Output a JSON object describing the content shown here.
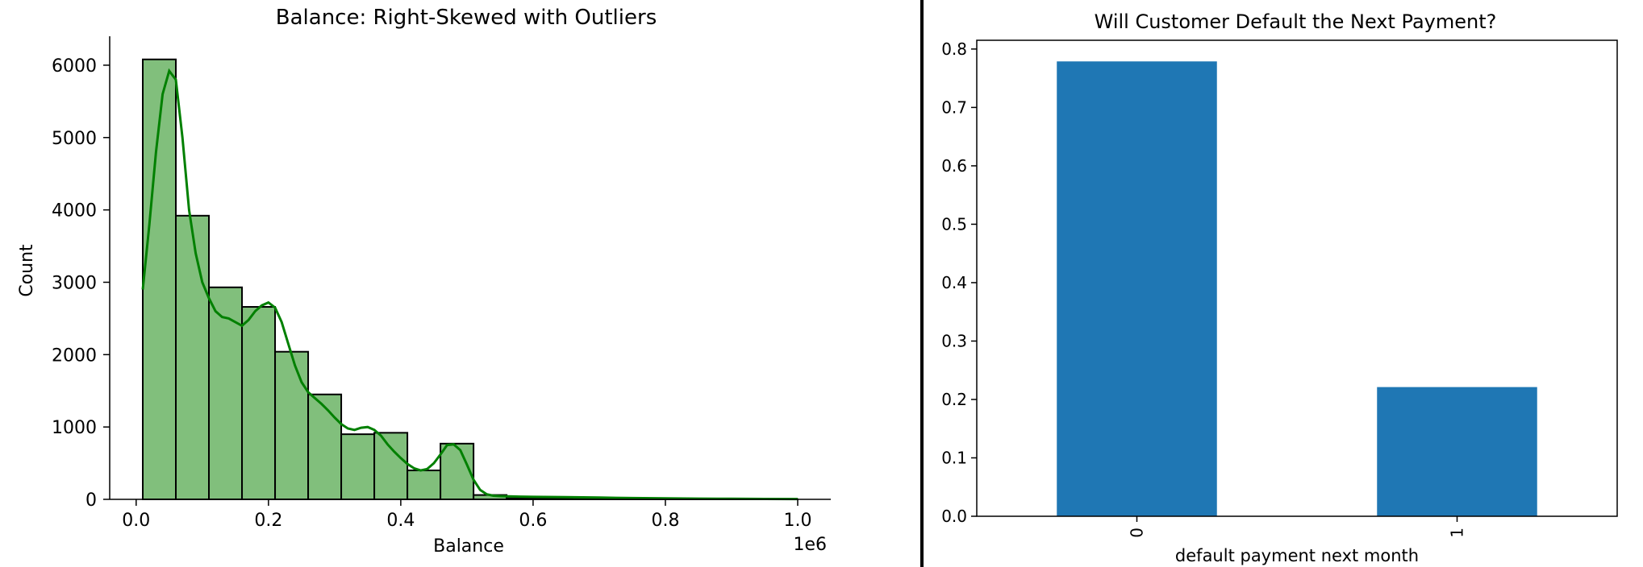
{
  "chart_data": [
    {
      "type": "bar",
      "subtype": "histogram-with-kde",
      "title": "Balance: Right-Skewed with Outliers",
      "xlabel": "Balance",
      "ylabel": "Count",
      "x_offset_text": "1e6",
      "x_unit_scale": 1000000,
      "xlim": [
        -0.04,
        1.05
      ],
      "ylim": [
        0,
        6400
      ],
      "x_ticks": [
        0.0,
        0.2,
        0.4,
        0.6,
        0.8,
        1.0
      ],
      "x_tick_labels": [
        "0.0",
        "0.2",
        "0.4",
        "0.6",
        "0.8",
        "1.0"
      ],
      "y_ticks": [
        0,
        1000,
        2000,
        3000,
        4000,
        5000,
        6000
      ],
      "y_tick_labels": [
        "0",
        "1000",
        "2000",
        "3000",
        "4000",
        "5000",
        "6000"
      ],
      "bins": [
        {
          "x0": 0.01,
          "x1": 0.06,
          "count": 6080
        },
        {
          "x0": 0.06,
          "x1": 0.11,
          "count": 3920
        },
        {
          "x0": 0.11,
          "x1": 0.16,
          "count": 2930
        },
        {
          "x0": 0.16,
          "x1": 0.21,
          "count": 2660
        },
        {
          "x0": 0.21,
          "x1": 0.26,
          "count": 2040
        },
        {
          "x0": 0.26,
          "x1": 0.31,
          "count": 1450
        },
        {
          "x0": 0.31,
          "x1": 0.36,
          "count": 900
        },
        {
          "x0": 0.36,
          "x1": 0.41,
          "count": 920
        },
        {
          "x0": 0.41,
          "x1": 0.46,
          "count": 400
        },
        {
          "x0": 0.46,
          "x1": 0.51,
          "count": 770
        },
        {
          "x0": 0.51,
          "x1": 0.56,
          "count": 60
        },
        {
          "x0": 0.56,
          "x1": 0.61,
          "count": 15
        },
        {
          "x0": 0.61,
          "x1": 0.66,
          "count": 10
        },
        {
          "x0": 0.66,
          "x1": 0.71,
          "count": 5
        },
        {
          "x0": 0.71,
          "x1": 0.76,
          "count": 4
        },
        {
          "x0": 0.76,
          "x1": 0.81,
          "count": 3
        },
        {
          "x0": 0.81,
          "x1": 0.86,
          "count": 2
        },
        {
          "x0": 0.86,
          "x1": 0.91,
          "count": 2
        },
        {
          "x0": 0.91,
          "x1": 0.96,
          "count": 1
        },
        {
          "x0": 0.96,
          "x1": 1.0,
          "count": 1
        }
      ],
      "kde": {
        "x": [
          0.01,
          0.02,
          0.03,
          0.04,
          0.05,
          0.06,
          0.07,
          0.08,
          0.09,
          0.1,
          0.11,
          0.12,
          0.13,
          0.14,
          0.15,
          0.16,
          0.17,
          0.18,
          0.19,
          0.2,
          0.21,
          0.22,
          0.23,
          0.24,
          0.25,
          0.26,
          0.27,
          0.28,
          0.29,
          0.3,
          0.31,
          0.32,
          0.33,
          0.34,
          0.35,
          0.36,
          0.37,
          0.38,
          0.39,
          0.4,
          0.41,
          0.42,
          0.43,
          0.44,
          0.45,
          0.46,
          0.47,
          0.48,
          0.49,
          0.5,
          0.51,
          0.52,
          0.53,
          0.54,
          0.55,
          0.56,
          0.58,
          0.6,
          0.65,
          0.7,
          0.75,
          0.8,
          0.85,
          0.9,
          0.95,
          1.0
        ],
        "y": [
          2900,
          3800,
          4800,
          5600,
          5920,
          5800,
          5000,
          4000,
          3400,
          3000,
          2780,
          2600,
          2520,
          2500,
          2450,
          2400,
          2480,
          2600,
          2680,
          2720,
          2650,
          2450,
          2150,
          1850,
          1620,
          1480,
          1400,
          1320,
          1230,
          1130,
          1040,
          980,
          960,
          990,
          1000,
          960,
          880,
          760,
          660,
          570,
          490,
          430,
          400,
          420,
          500,
          620,
          750,
          760,
          680,
          480,
          270,
          130,
          70,
          50,
          45,
          42,
          38,
          35,
          30,
          24,
          18,
          14,
          10,
          8,
          6,
          4
        ]
      },
      "colors": {
        "bar_fill": "#81bf7c",
        "bar_edge": "#000000",
        "kde": "#008000"
      },
      "grid": false
    },
    {
      "type": "bar",
      "title": "Will Customer Default the Next Payment?",
      "xlabel": "default payment next month",
      "ylabel": "",
      "categories": [
        "0",
        "1"
      ],
      "values": [
        0.7788,
        0.2212
      ],
      "ylim": [
        0,
        0.815
      ],
      "y_ticks": [
        0.0,
        0.1,
        0.2,
        0.3,
        0.4,
        0.5,
        0.6,
        0.7,
        0.8
      ],
      "y_tick_labels": [
        "0.0",
        "0.1",
        "0.2",
        "0.3",
        "0.4",
        "0.5",
        "0.6",
        "0.7",
        "0.8"
      ],
      "x_tick_rotation": 90,
      "colors": {
        "bar": "#1f77b4"
      },
      "grid": false
    }
  ]
}
